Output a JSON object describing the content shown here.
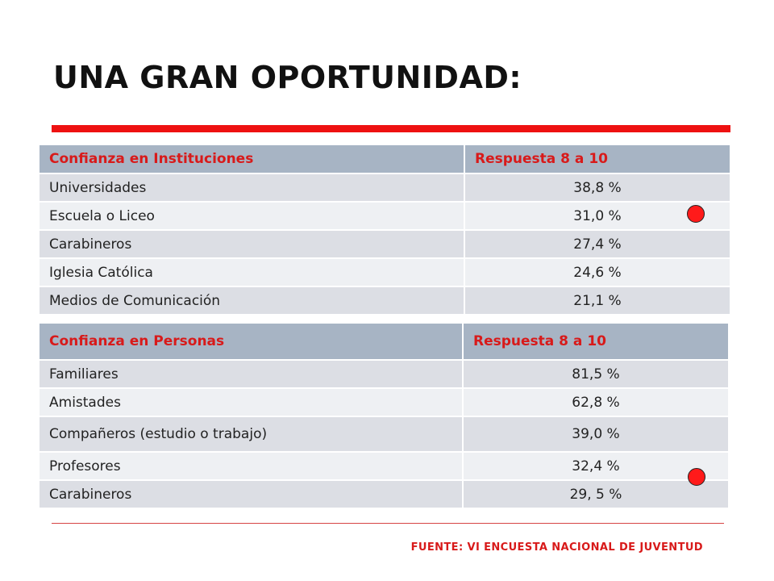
{
  "title": "UNA GRAN OPORTUNIDAD:",
  "colors": {
    "accent": "#ee1111",
    "header_bg": "#a7b4c4",
    "header_text": "#d81a1a",
    "row_odd": "#dcdee4",
    "row_even": "#eef0f3"
  },
  "table_institutions": {
    "header_label": "Confianza en Instituciones",
    "header_value": "Respuesta 8 a 10",
    "rows": [
      {
        "label": "Universidades",
        "value": "38,8 %"
      },
      {
        "label": "Escuela o Liceo",
        "value": "31,0 %",
        "marker": "red-circle-icon"
      },
      {
        "label": "Carabineros",
        "value": "27,4 %"
      },
      {
        "label": "Iglesia Católica",
        "value": "24,6 %"
      },
      {
        "label": "Medios de Comunicación",
        "value": "21,1 %"
      }
    ]
  },
  "table_people": {
    "header_label": "Confianza en Personas",
    "header_value": "Respuesta 8 a 10",
    "rows": [
      {
        "label": "Familiares",
        "value": "81,5 %"
      },
      {
        "label": "Amistades",
        "value": "62,8 %"
      },
      {
        "label": "Compañeros (estudio o trabajo)",
        "value": "39,0 %"
      },
      {
        "label": "Profesores",
        "value": "32,4 %",
        "marker": "red-circle-icon"
      },
      {
        "label": "Carabineros",
        "value": "29, 5 %"
      }
    ]
  },
  "source": "FUENTE: VI ENCUESTA NACIONAL DE JUVENTUD"
}
